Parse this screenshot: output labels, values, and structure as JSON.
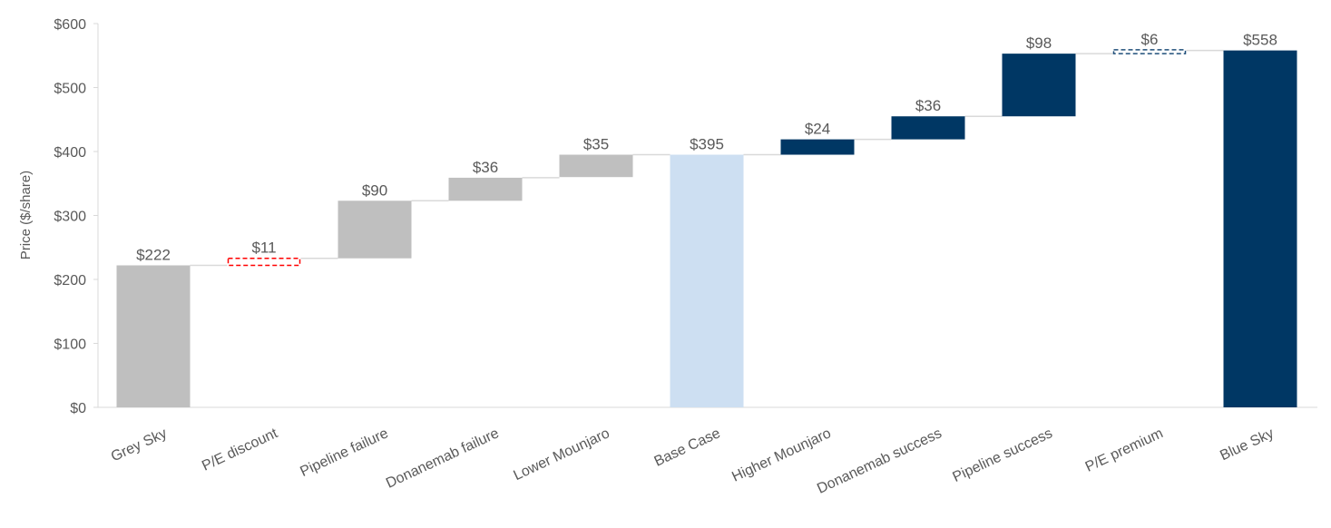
{
  "chart_data": {
    "type": "bar",
    "subtype": "waterfall",
    "title": "",
    "xlabel": "",
    "ylabel": "Price ($/share)",
    "ylim": [
      0,
      600
    ],
    "y_ticks": [
      {
        "value": 0,
        "label": "$0"
      },
      {
        "value": 100,
        "label": "$100"
      },
      {
        "value": 200,
        "label": "$200"
      },
      {
        "value": 300,
        "label": "$300"
      },
      {
        "value": 400,
        "label": "$400"
      },
      {
        "value": 500,
        "label": "$500"
      },
      {
        "value": 600,
        "label": "$600"
      }
    ],
    "grid": false,
    "legend": "none",
    "categories": [
      "Grey Sky",
      "P/E discount",
      "Pipeline failure",
      "Donanemab failure",
      "Lower Mounjaro",
      "Base Case",
      "Higher Mounjaro",
      "Donanemab success",
      "Pipeline success",
      "P/E premium",
      "Blue Sky"
    ],
    "bars": [
      {
        "category": "Grey Sky",
        "start": 0,
        "end": 222,
        "label": "$222",
        "style": "total-grey",
        "color": "#bfbfbf"
      },
      {
        "category": "P/E discount",
        "start": 222,
        "end": 233,
        "label": "$11",
        "style": "dashed",
        "color": "#ff0000"
      },
      {
        "category": "Pipeline failure",
        "start": 233,
        "end": 323,
        "label": "$90",
        "style": "step-grey",
        "color": "#bfbfbf"
      },
      {
        "category": "Donanemab failure",
        "start": 323,
        "end": 359,
        "label": "$36",
        "style": "step-grey",
        "color": "#bfbfbf"
      },
      {
        "category": "Lower Mounjaro",
        "start": 360,
        "end": 395,
        "label": "$35",
        "style": "step-grey",
        "color": "#bfbfbf"
      },
      {
        "category": "Base Case",
        "start": 0,
        "end": 395,
        "label": "$395",
        "style": "total-light",
        "color": "#cddff2"
      },
      {
        "category": "Higher Mounjaro",
        "start": 395,
        "end": 419,
        "label": "$24",
        "style": "step-navy",
        "color": "#003764"
      },
      {
        "category": "Donanemab success",
        "start": 419,
        "end": 455,
        "label": "$36",
        "style": "step-navy",
        "color": "#003764"
      },
      {
        "category": "Pipeline success",
        "start": 455,
        "end": 553,
        "label": "$98",
        "style": "step-navy",
        "color": "#003764"
      },
      {
        "category": "P/E premium",
        "start": 553,
        "end": 559,
        "label": "$6",
        "style": "dashed",
        "color": "#1f4e79"
      },
      {
        "category": "Blue Sky",
        "start": 0,
        "end": 558,
        "label": "$558",
        "style": "total-navy",
        "color": "#003764"
      }
    ],
    "connector_color": "#d9d9d9"
  }
}
